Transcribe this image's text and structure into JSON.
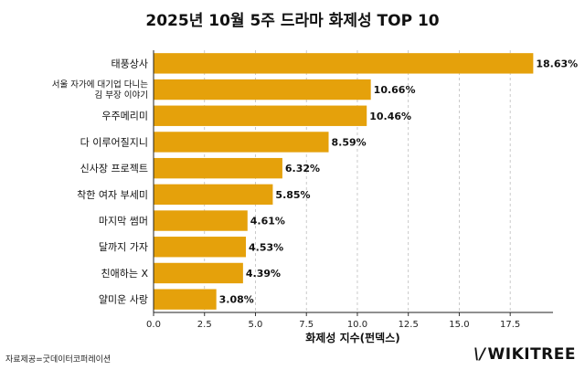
{
  "chart_data": {
    "type": "bar",
    "orientation": "horizontal",
    "title": "2025년 10월 5주 드라마 화제성 TOP 10",
    "xlabel": "화제성 지수(펀덱스)",
    "ylabel": "",
    "xlim": [
      0,
      19.6
    ],
    "xticks": [
      0.0,
      2.5,
      5.0,
      7.5,
      10.0,
      12.5,
      15.0,
      17.5
    ],
    "xtick_labels": [
      "0.0",
      "2.5",
      "5.0",
      "7.5",
      "10.0",
      "12.5",
      "15.0",
      "17.5"
    ],
    "grid": "vertical-dashed",
    "bar_color": "#E5A10B",
    "categories": [
      [
        "태풍상사"
      ],
      [
        "서울 자가에 대기업 다니는",
        "김 부장 이야기"
      ],
      [
        "우주메리미"
      ],
      [
        "다 이루어질지니"
      ],
      [
        "신사장 프로젝트"
      ],
      [
        "착한 여자 부세미"
      ],
      [
        "마지막 썸머"
      ],
      [
        "달까지 가자"
      ],
      [
        "친애하는 X"
      ],
      [
        "얄미운 사랑"
      ]
    ],
    "values": [
      18.63,
      10.66,
      10.46,
      8.59,
      6.32,
      5.85,
      4.61,
      4.53,
      4.39,
      3.08
    ],
    "value_labels": [
      "18.63%",
      "10.66%",
      "10.46%",
      "8.59%",
      "6.32%",
      "5.85%",
      "4.61%",
      "4.53%",
      "4.39%",
      "3.08%"
    ]
  },
  "source": "자료제공=굿데이터코퍼레이션",
  "logo": {
    "mark": "\\/",
    "text": "WIKITREE"
  }
}
